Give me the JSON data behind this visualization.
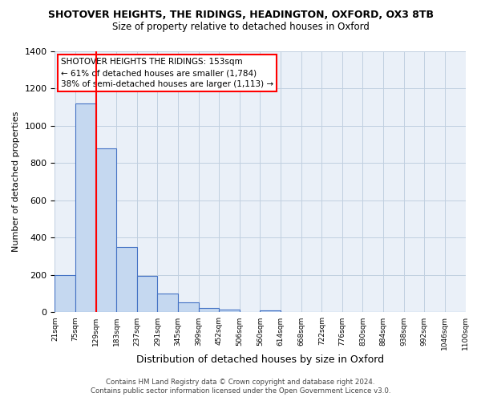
{
  "title": "SHOTOVER HEIGHTS, THE RIDINGS, HEADINGTON, OXFORD, OX3 8TB",
  "subtitle": "Size of property relative to detached houses in Oxford",
  "xlabel": "Distribution of detached houses by size in Oxford",
  "ylabel": "Number of detached properties",
  "bar_values": [
    200,
    1120,
    880,
    350,
    195,
    100,
    55,
    25,
    15,
    0,
    10,
    0,
    0,
    0,
    0,
    0,
    0,
    0,
    0,
    0
  ],
  "bin_labels": [
    "21sqm",
    "75sqm",
    "129sqm",
    "183sqm",
    "237sqm",
    "291sqm",
    "345sqm",
    "399sqm",
    "452sqm",
    "506sqm",
    "560sqm",
    "614sqm",
    "668sqm",
    "722sqm",
    "776sqm",
    "830sqm",
    "884sqm",
    "938sqm",
    "992sqm",
    "1046sqm",
    "1100sqm"
  ],
  "bar_color": "#c5d8f0",
  "bar_edge_color": "#4472c4",
  "ylim": [
    0,
    1400
  ],
  "yticks": [
    0,
    200,
    400,
    600,
    800,
    1000,
    1200,
    1400
  ],
  "red_line_x": 1.5,
  "annotation_title": "SHOTOVER HEIGHTS THE RIDINGS: 153sqm",
  "annotation_line1": "← 61% of detached houses are smaller (1,784)",
  "annotation_line2": "38% of semi-detached houses are larger (1,113) →",
  "footer_line1": "Contains HM Land Registry data © Crown copyright and database right 2024.",
  "footer_line2": "Contains public sector information licensed under the Open Government Licence v3.0.",
  "grid_color": "#c0cfe0",
  "background_color": "#eaf0f8"
}
